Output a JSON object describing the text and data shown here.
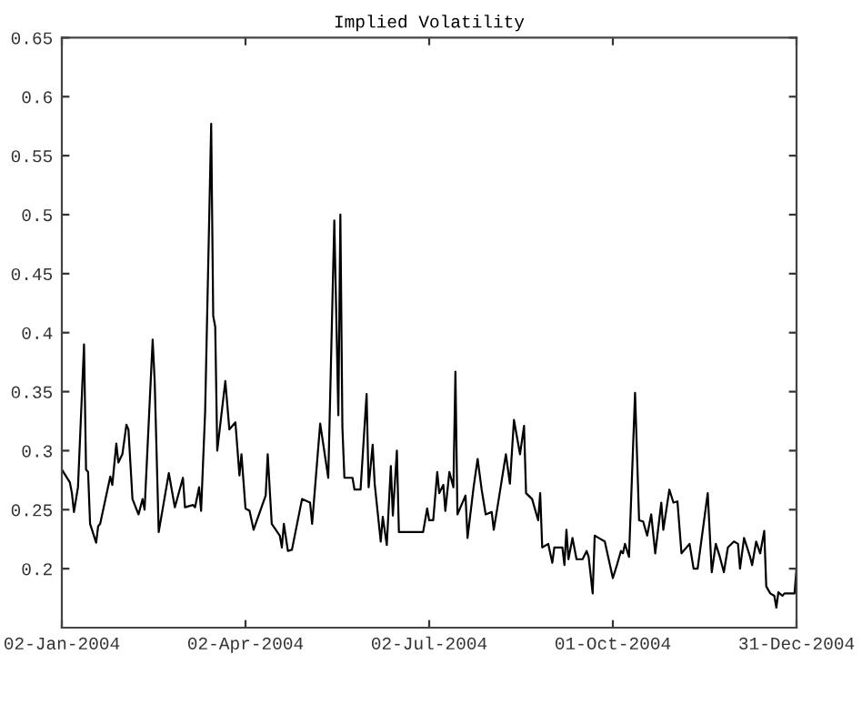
{
  "chart_data": {
    "type": "line",
    "title": "Implied Volatility",
    "x": [
      "2004-01-02",
      "2004-01-06",
      "2004-01-07",
      "2004-01-08",
      "2004-01-10",
      "2004-01-13",
      "2004-01-14",
      "2004-01-15",
      "2004-01-16",
      "2004-01-19",
      "2004-01-20",
      "2004-01-21",
      "2004-01-26",
      "2004-01-27",
      "2004-01-29",
      "2004-01-30",
      "2004-02-01",
      "2004-02-03",
      "2004-02-04",
      "2004-02-06",
      "2004-02-09",
      "2004-02-11",
      "2004-02-12",
      "2004-02-16",
      "2004-02-17",
      "2004-02-19",
      "2004-02-24",
      "2004-02-27",
      "2004-03-02",
      "2004-03-03",
      "2004-03-07",
      "2004-03-08",
      "2004-03-10",
      "2004-03-11",
      "2004-03-13",
      "2004-03-16",
      "2004-03-17",
      "2004-03-18",
      "2004-03-19",
      "2004-03-23",
      "2004-03-25",
      "2004-03-28",
      "2004-03-30",
      "2004-03-31",
      "2004-04-02",
      "2004-04-04",
      "2004-04-06",
      "2004-04-12",
      "2004-04-13",
      "2004-04-15",
      "2004-04-19",
      "2004-04-20",
      "2004-04-21",
      "2004-04-23",
      "2004-04-25",
      "2004-04-30",
      "2004-05-04",
      "2004-05-05",
      "2004-05-09",
      "2004-05-13",
      "2004-05-16",
      "2004-05-18",
      "2004-05-19",
      "2004-05-20",
      "2004-05-21",
      "2004-05-25",
      "2004-05-26",
      "2004-05-29",
      "2004-06-01",
      "2004-06-02",
      "2004-06-04",
      "2004-06-05",
      "2004-06-08",
      "2004-06-09",
      "2004-06-11",
      "2004-06-13",
      "2004-06-14",
      "2004-06-16",
      "2004-06-17",
      "2004-06-29",
      "2004-07-01",
      "2004-07-02",
      "2004-07-04",
      "2004-07-06",
      "2004-07-07",
      "2004-07-09",
      "2004-07-10",
      "2004-07-12",
      "2004-07-14",
      "2004-07-15",
      "2004-07-16",
      "2004-07-20",
      "2004-07-21",
      "2004-07-24",
      "2004-07-26",
      "2004-07-28",
      "2004-07-30",
      "2004-08-02",
      "2004-08-03",
      "2004-08-05",
      "2004-08-09",
      "2004-08-11",
      "2004-08-13",
      "2004-08-16",
      "2004-08-18",
      "2004-08-19",
      "2004-08-22",
      "2004-08-25",
      "2004-08-26",
      "2004-08-27",
      "2004-08-30",
      "2004-09-01",
      "2004-09-02",
      "2004-09-06",
      "2004-09-07",
      "2004-09-08",
      "2004-09-09",
      "2004-09-11",
      "2004-09-13",
      "2004-09-16",
      "2004-09-18",
      "2004-09-19",
      "2004-09-21",
      "2004-09-22",
      "2004-09-24",
      "2004-09-27",
      "2004-10-01",
      "2004-10-03",
      "2004-10-05",
      "2004-10-06",
      "2004-10-07",
      "2004-10-09",
      "2004-10-12",
      "2004-10-14",
      "2004-10-16",
      "2004-10-18",
      "2004-10-20",
      "2004-10-22",
      "2004-10-25",
      "2004-10-26",
      "2004-10-29",
      "2004-10-31",
      "2004-11-02",
      "2004-11-04",
      "2004-11-08",
      "2004-11-10",
      "2004-11-12",
      "2004-11-17",
      "2004-11-19",
      "2004-11-21",
      "2004-11-23",
      "2004-11-25",
      "2004-11-27",
      "2004-11-30",
      "2004-12-02",
      "2004-12-03",
      "2004-12-05",
      "2004-12-08",
      "2004-12-09",
      "2004-12-11",
      "2004-12-13",
      "2004-12-15",
      "2004-12-16",
      "2004-12-18",
      "2004-12-20",
      "2004-12-21",
      "2004-12-22",
      "2004-12-24",
      "2004-12-25",
      "2004-12-30",
      "2004-12-31"
    ],
    "series": [
      {
        "color": "#000000",
        "values": [
          0.284,
          0.273,
          0.264,
          0.248,
          0.269,
          0.39,
          0.284,
          0.282,
          0.238,
          0.222,
          0.236,
          0.238,
          0.278,
          0.271,
          0.306,
          0.29,
          0.297,
          0.322,
          0.318,
          0.259,
          0.246,
          0.259,
          0.25,
          0.394,
          0.359,
          0.231,
          0.281,
          0.252,
          0.277,
          0.252,
          0.254,
          0.252,
          0.269,
          0.249,
          0.333,
          0.577,
          0.414,
          0.405,
          0.3,
          0.359,
          0.318,
          0.324,
          0.279,
          0.297,
          0.251,
          0.249,
          0.233,
          0.262,
          0.297,
          0.238,
          0.228,
          0.218,
          0.238,
          0.215,
          0.216,
          0.259,
          0.256,
          0.238,
          0.323,
          0.277,
          0.495,
          0.33,
          0.5,
          0.32,
          0.277,
          0.277,
          0.267,
          0.267,
          0.348,
          0.269,
          0.305,
          0.272,
          0.223,
          0.244,
          0.22,
          0.287,
          0.245,
          0.3,
          0.231,
          0.231,
          0.251,
          0.241,
          0.241,
          0.282,
          0.264,
          0.271,
          0.249,
          0.282,
          0.269,
          0.367,
          0.246,
          0.262,
          0.226,
          0.269,
          0.293,
          0.267,
          0.246,
          0.248,
          0.233,
          0.254,
          0.297,
          0.272,
          0.326,
          0.297,
          0.321,
          0.264,
          0.259,
          0.241,
          0.264,
          0.218,
          0.221,
          0.205,
          0.218,
          0.218,
          0.203,
          0.233,
          0.208,
          0.226,
          0.208,
          0.208,
          0.215,
          0.21,
          0.179,
          0.228,
          0.226,
          0.223,
          0.192,
          0.203,
          0.215,
          0.213,
          0.221,
          0.21,
          0.349,
          0.241,
          0.24,
          0.228,
          0.246,
          0.213,
          0.256,
          0.233,
          0.267,
          0.256,
          0.257,
          0.213,
          0.221,
          0.2,
          0.2,
          0.264,
          0.197,
          0.221,
          0.21,
          0.197,
          0.218,
          0.223,
          0.221,
          0.2,
          0.226,
          0.21,
          0.203,
          0.223,
          0.213,
          0.232,
          0.185,
          0.179,
          0.177,
          0.167,
          0.18,
          0.177,
          0.179,
          0.179,
          0.2
        ]
      }
    ],
    "xlim": [
      "2004-01-02",
      "2004-12-31"
    ],
    "xticks": [
      {
        "value": "2004-01-02",
        "label": "02-Jan-2004"
      },
      {
        "value": "2004-04-02",
        "label": "02-Apr-2004"
      },
      {
        "value": "2004-07-02",
        "label": "02-Jul-2004"
      },
      {
        "value": "2004-10-01",
        "label": "01-Oct-2004"
      },
      {
        "value": "2004-12-31",
        "label": "31-Dec-2004"
      }
    ],
    "ylim": [
      0.15,
      0.65
    ],
    "yticks": [
      0.2,
      0.25,
      0.3,
      0.35,
      0.4,
      0.45,
      0.5,
      0.55,
      0.6,
      0.65
    ],
    "grid": false,
    "marker": "none",
    "line_style": "solid"
  }
}
